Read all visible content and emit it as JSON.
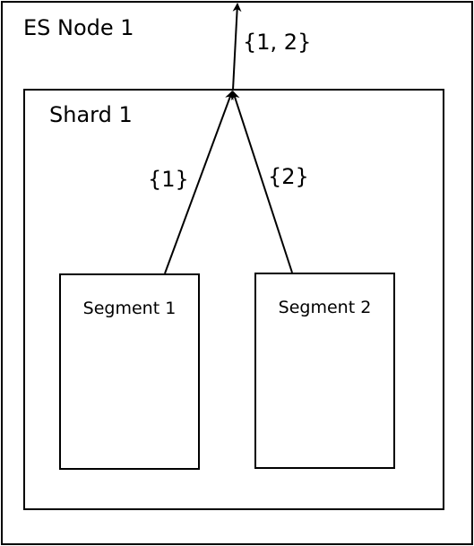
{
  "node": {
    "title": "ES Node 1"
  },
  "shard": {
    "title": "Shard 1"
  },
  "segments": [
    {
      "title": "Segment 1"
    },
    {
      "title": "Segment 2"
    }
  ],
  "edges": {
    "shard_to_node": "{1, 2}",
    "segment1_to_shard": "{1}",
    "segment2_to_shard": "{2}"
  }
}
